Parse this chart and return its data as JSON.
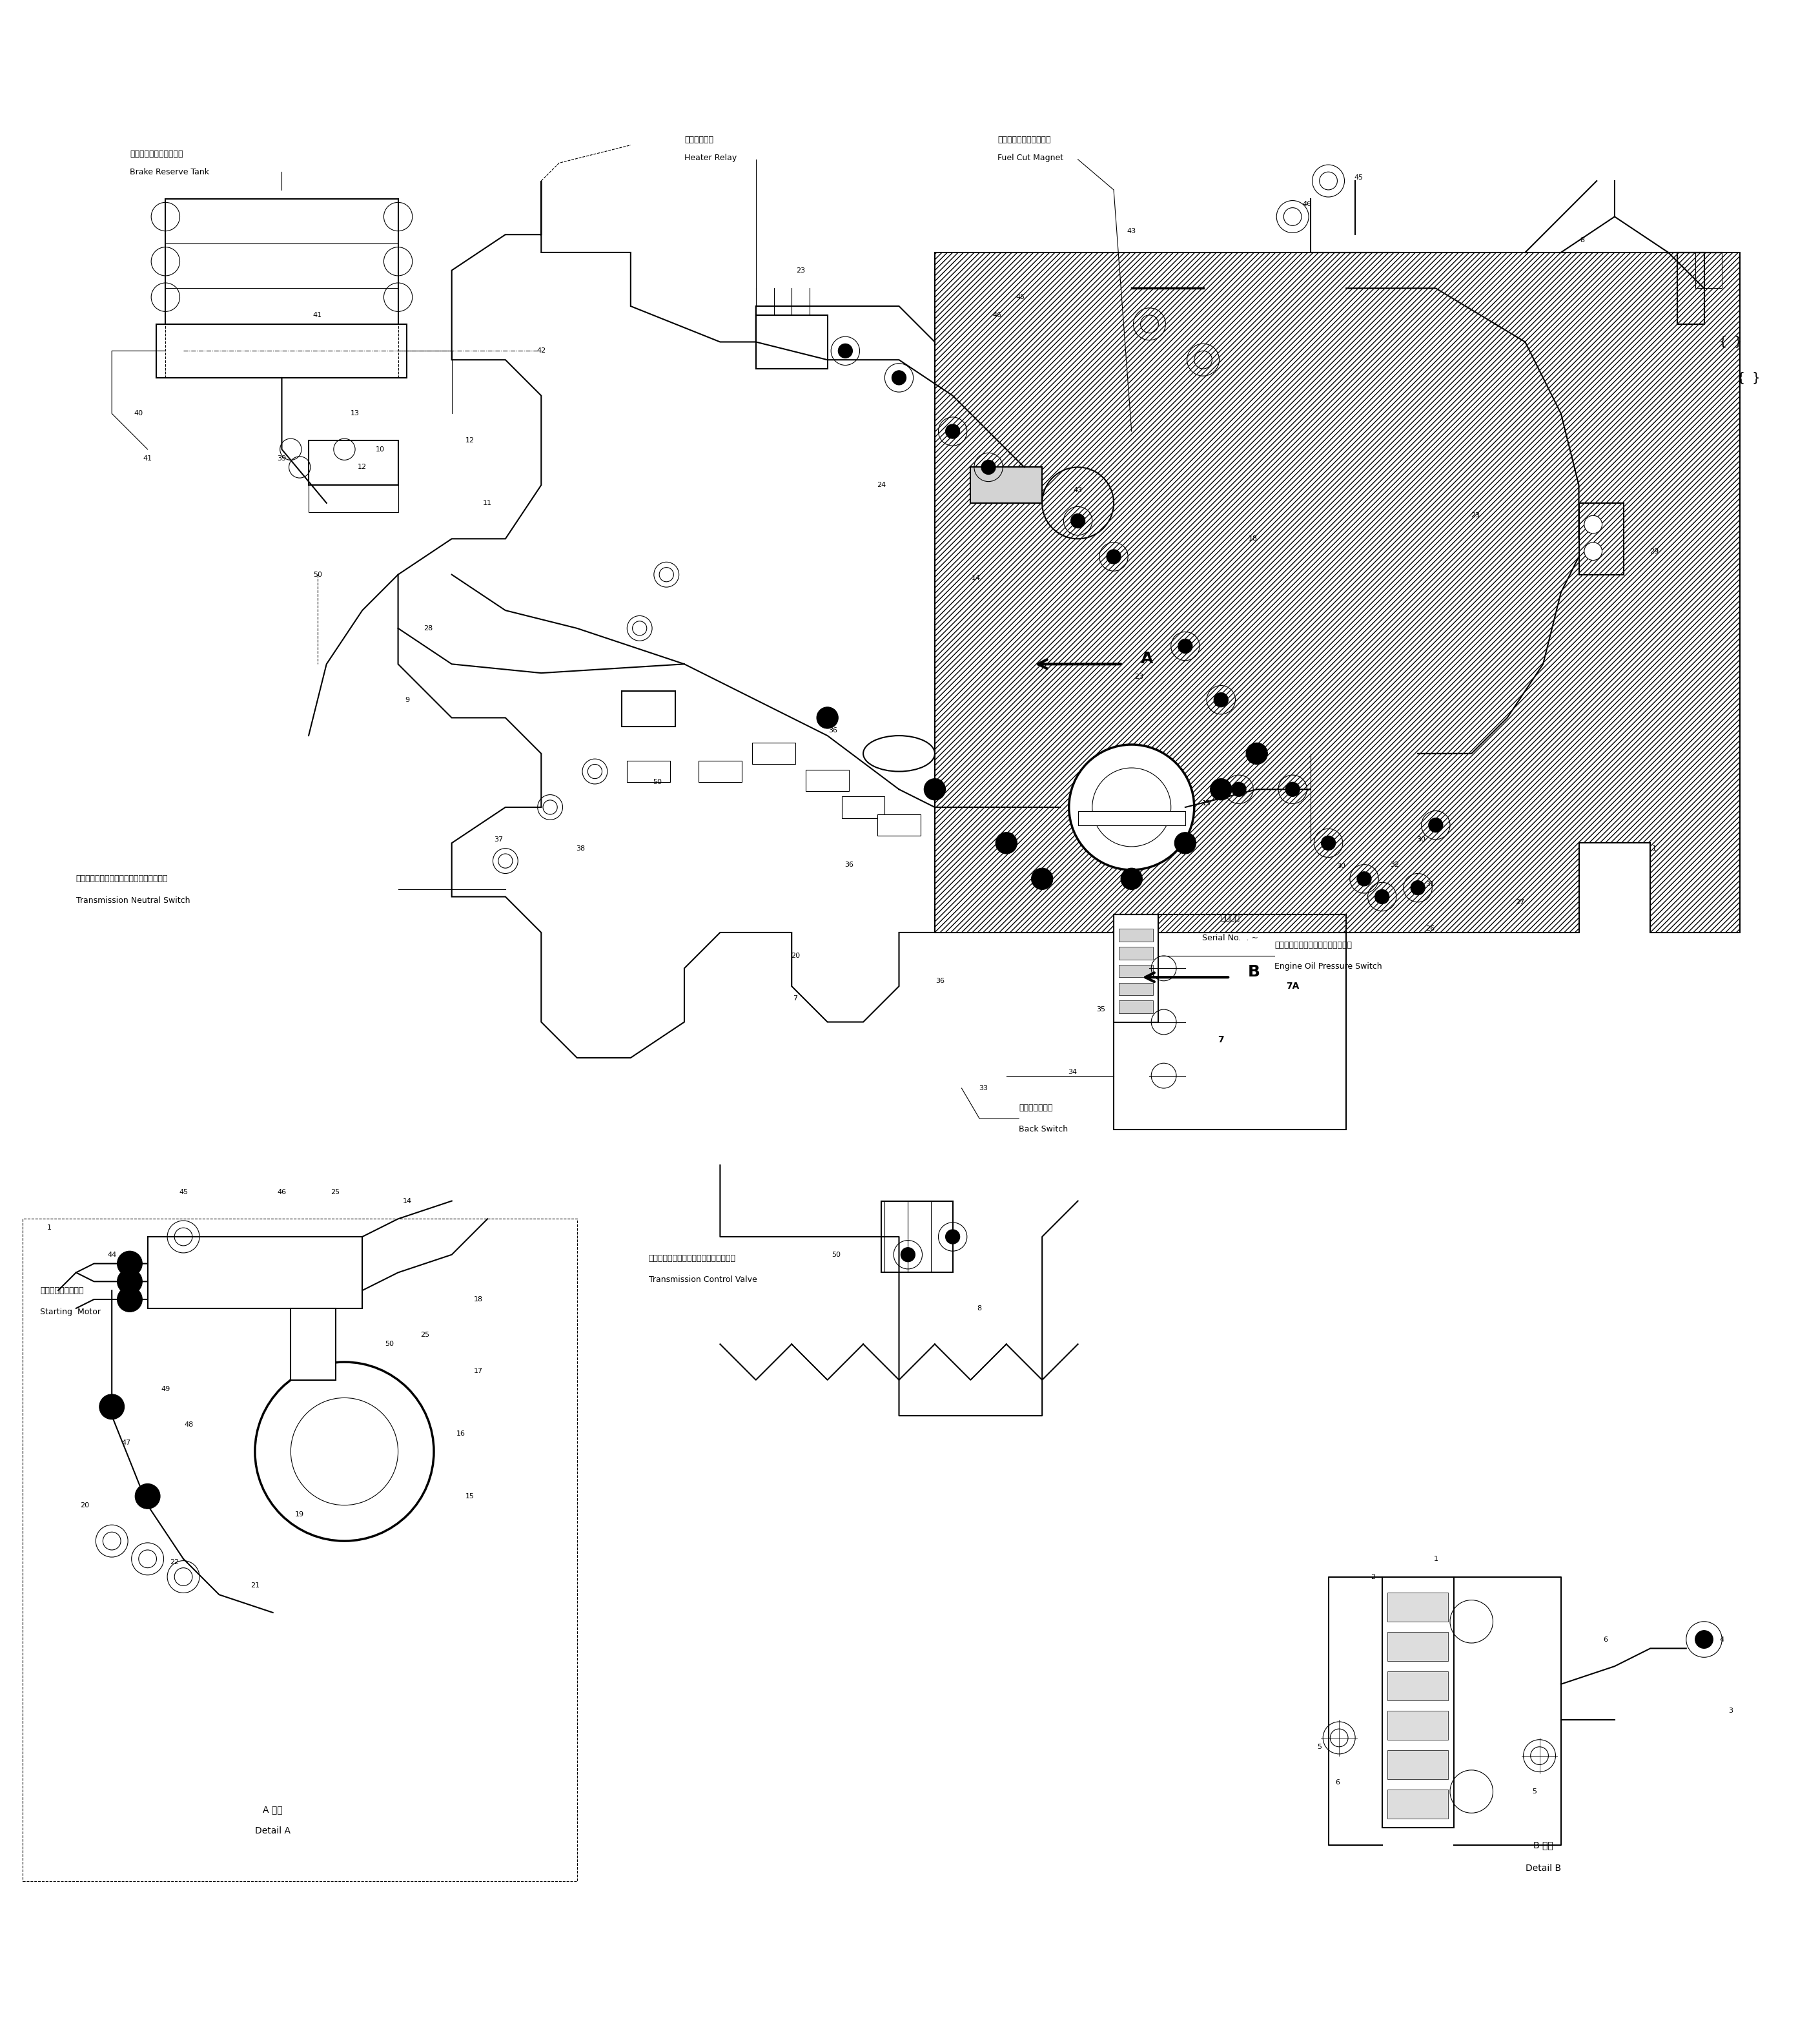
{
  "title": "",
  "bg_color": "#ffffff",
  "line_color": "#000000",
  "fig_width": 27.85,
  "fig_height": 31.65,
  "labels": {
    "brake_reserve_tank_jp": "ブレーキリザーブタンク",
    "brake_reserve_tank_en": "Brake Reserve Tank",
    "heater_relay_jp": "ヒータリレー",
    "heater_relay_en": "Heater Relay",
    "fuel_cut_magnet_jp": "フエルカットマグネット",
    "fuel_cut_magnet_en": "Fuel Cut Magnet",
    "trans_neutral_switch_jp": "トランスミッションニュートラルスイッチ",
    "trans_neutral_switch_en": "Transmission Neutral Switch",
    "engine_oil_pressure_jp": "エンジンオイルプレッシャスイッチ",
    "engine_oil_pressure_en": "Engine Oil Pressure Switch",
    "starting_motor_jp": "スターティングモタ",
    "starting_motor_en": "Starting  Motor",
    "back_switch_jp": "バックスイッチ",
    "back_switch_en": "Back Switch",
    "trans_control_valve_jp": "トランスミッションコントロールバルブ",
    "trans_control_valve_en": "Transmission Control Valve",
    "serial_no_jp": "適用号機",
    "serial_no_en": "Serial No.",
    "detail_a_jp": "A 詳細",
    "detail_a_en": "Detail A",
    "detail_b_jp": "B 詳細",
    "detail_b_en": "Detail B"
  }
}
